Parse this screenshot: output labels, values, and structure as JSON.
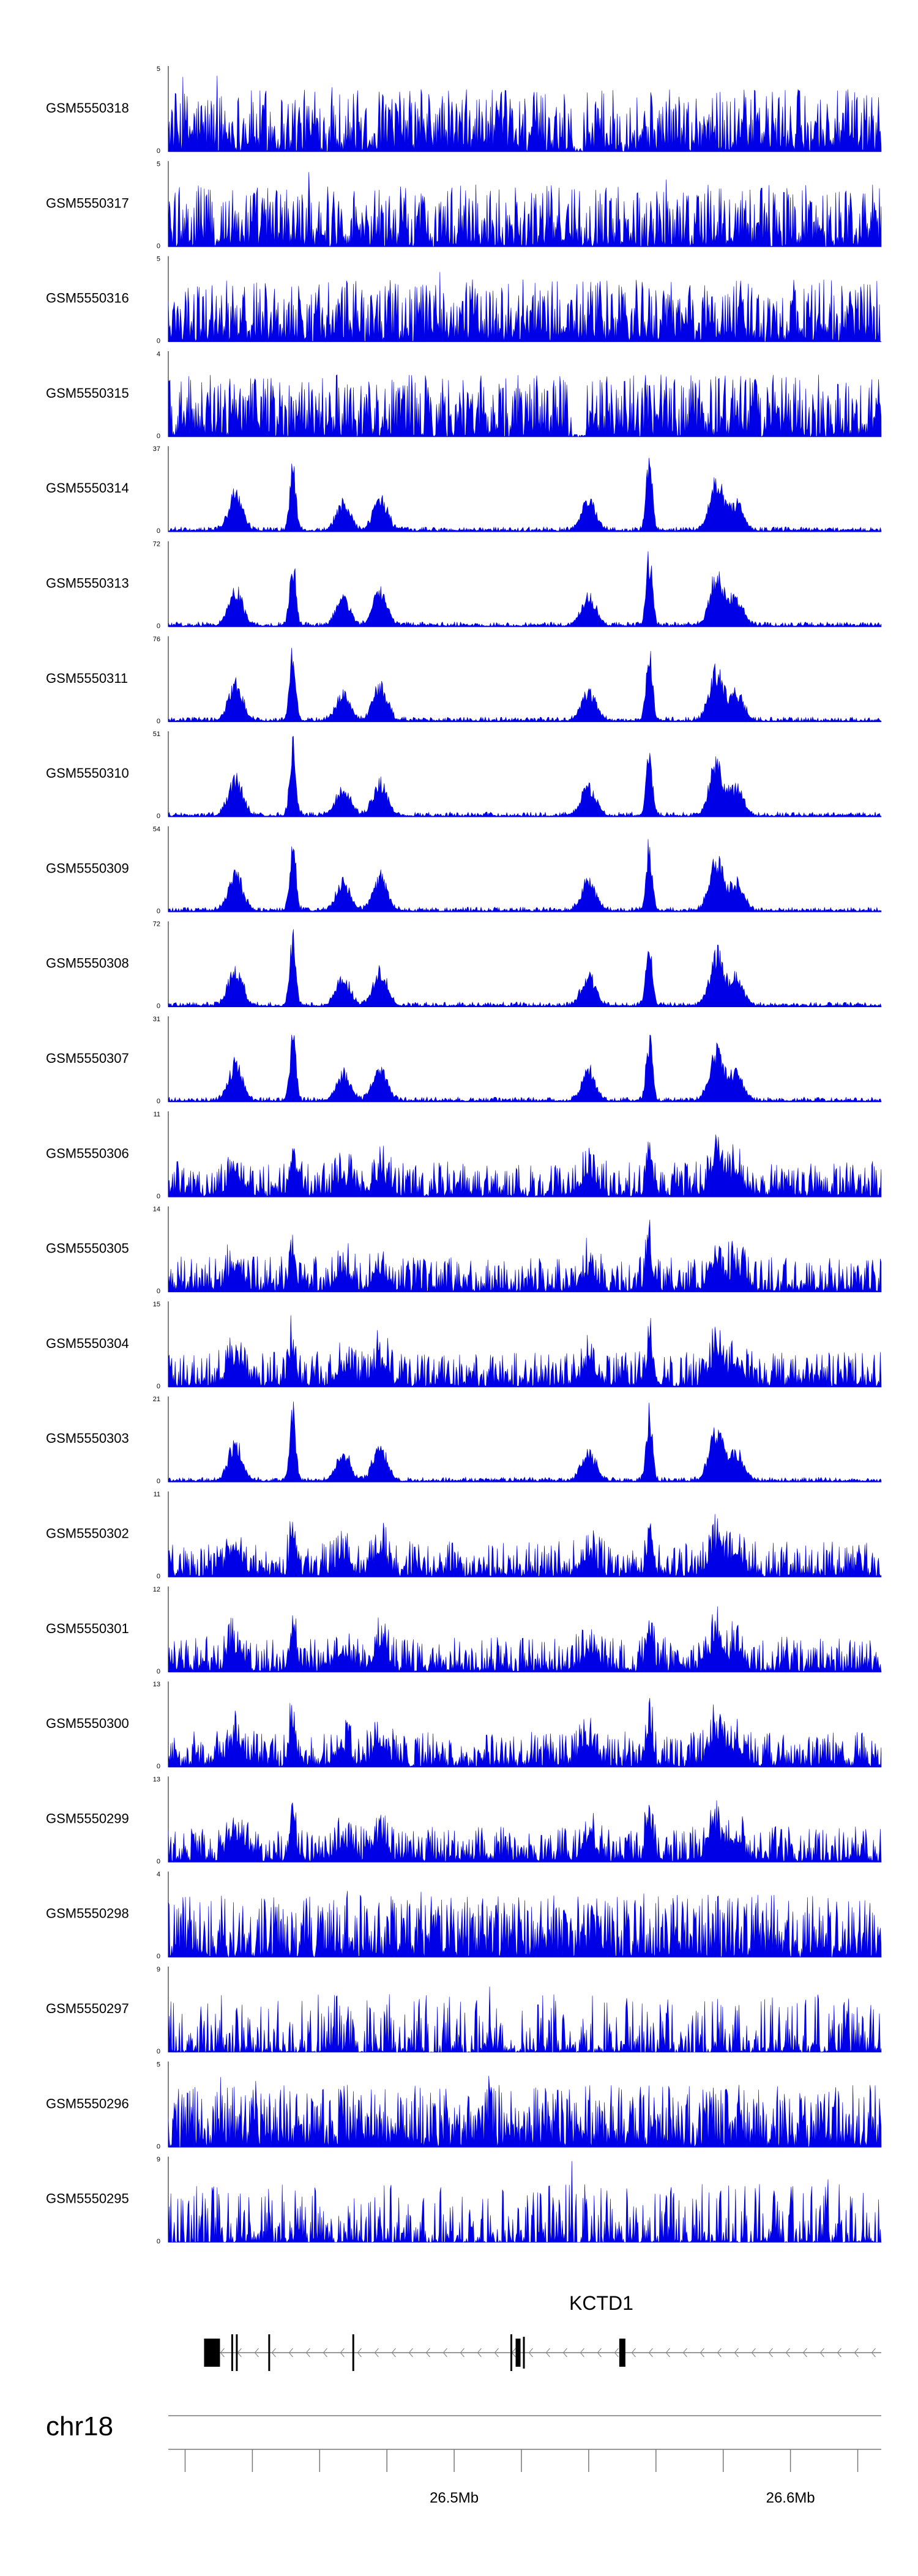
{
  "chart_data": {
    "type": "area",
    "tracks": [
      {
        "name": "GSM5550318",
        "ymax": 5,
        "ymin": 0,
        "kind": "noise"
      },
      {
        "name": "GSM5550317",
        "ymax": 5,
        "ymin": 0,
        "kind": "noise"
      },
      {
        "name": "GSM5550316",
        "ymax": 5,
        "ymin": 0,
        "kind": "noise"
      },
      {
        "name": "GSM5550315",
        "ymax": 4,
        "ymin": 0,
        "kind": "noise"
      },
      {
        "name": "GSM5550314",
        "ymax": 37,
        "ymin": 0,
        "kind": "peaks"
      },
      {
        "name": "GSM5550313",
        "ymax": 72,
        "ymin": 0,
        "kind": "peaks"
      },
      {
        "name": "GSM5550311",
        "ymax": 76,
        "ymin": 0,
        "kind": "peaks"
      },
      {
        "name": "GSM5550310",
        "ymax": 51,
        "ymin": 0,
        "kind": "peaks"
      },
      {
        "name": "GSM5550309",
        "ymax": 54,
        "ymin": 0,
        "kind": "peaks"
      },
      {
        "name": "GSM5550308",
        "ymax": 72,
        "ymin": 0,
        "kind": "peaks"
      },
      {
        "name": "GSM5550307",
        "ymax": 31,
        "ymin": 0,
        "kind": "peaks"
      },
      {
        "name": "GSM5550306",
        "ymax": 11,
        "ymin": 0,
        "kind": "mixed"
      },
      {
        "name": "GSM5550305",
        "ymax": 14,
        "ymin": 0,
        "kind": "mixed"
      },
      {
        "name": "GSM5550304",
        "ymax": 15,
        "ymin": 0,
        "kind": "mixed"
      },
      {
        "name": "GSM5550303",
        "ymax": 21,
        "ymin": 0,
        "kind": "peaks"
      },
      {
        "name": "GSM5550302",
        "ymax": 11,
        "ymin": 0,
        "kind": "mixed"
      },
      {
        "name": "GSM5550301",
        "ymax": 12,
        "ymin": 0,
        "kind": "mixed"
      },
      {
        "name": "GSM5550300",
        "ymax": 13,
        "ymin": 0,
        "kind": "mixed"
      },
      {
        "name": "GSM5550299",
        "ymax": 13,
        "ymin": 0,
        "kind": "mixed"
      },
      {
        "name": "GSM5550298",
        "ymax": 4,
        "ymin": 0,
        "kind": "noise"
      },
      {
        "name": "GSM5550297",
        "ymax": 9,
        "ymin": 0,
        "kind": "sparse"
      },
      {
        "name": "GSM5550296",
        "ymax": 5,
        "ymin": 0,
        "kind": "noise"
      },
      {
        "name": "GSM5550295",
        "ymax": 9,
        "ymin": 0,
        "kind": "sparse"
      }
    ],
    "x_range_mb": [
      26.415,
      26.627
    ],
    "peak_positions_mb": [
      26.435,
      26.452,
      26.467,
      26.478,
      26.54,
      26.558,
      26.578,
      26.584
    ],
    "gene": {
      "label": "KCTD1",
      "strand": "-",
      "span_mb": [
        26.428,
        26.627
      ],
      "exons_mb": [
        26.428,
        26.434,
        26.445,
        26.47,
        26.517,
        26.519,
        26.55
      ]
    },
    "chromosome": "chr18",
    "ticks_mb": [
      26.42,
      26.44,
      26.46,
      26.48,
      26.5,
      26.52,
      26.54,
      26.56,
      26.58,
      26.6,
      26.62
    ],
    "major_tick_labels": [
      {
        "value": 26.5,
        "label": "26.5Mb"
      },
      {
        "value": 26.6,
        "label": "26.6Mb"
      }
    ],
    "color": "#0000e6"
  }
}
